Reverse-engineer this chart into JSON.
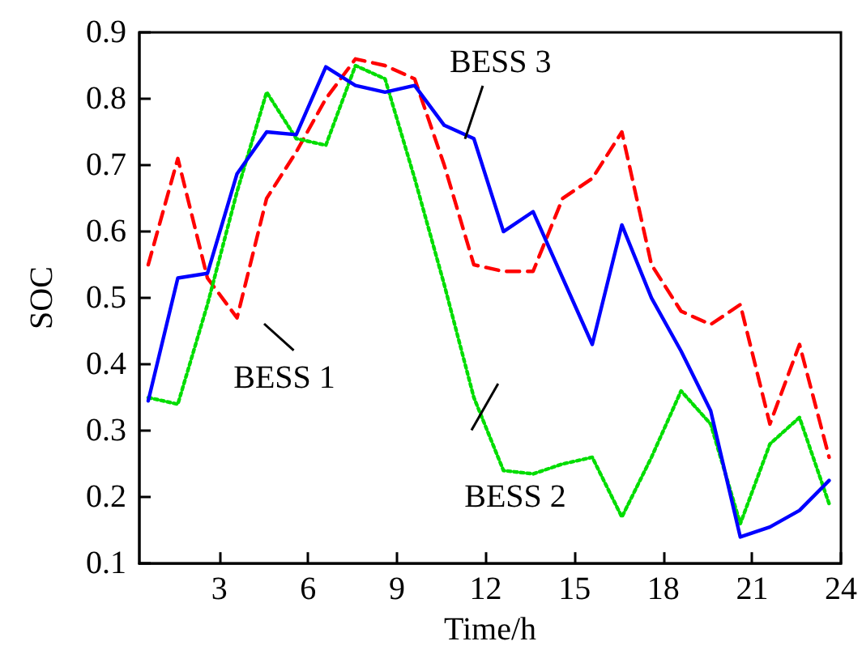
{
  "chart_data": {
    "type": "line",
    "xlabel": "Time/h",
    "ylabel": "SOC",
    "x": [
      0.6,
      1.6,
      2.6,
      3.6,
      4.6,
      5.6,
      6.6,
      7.6,
      8.6,
      9.6,
      10.6,
      11.6,
      12.6,
      13.6,
      14.6,
      15.6,
      16.6,
      17.6,
      18.6,
      19.6,
      20.6,
      21.6,
      22.6,
      23.6
    ],
    "xlim": [
      0.3,
      24
    ],
    "xticks": [
      3,
      6,
      9,
      12,
      15,
      18,
      21,
      24
    ],
    "ylim": [
      0.1,
      0.9
    ],
    "yticks": [
      0.1,
      0.2,
      0.3,
      0.4,
      0.5,
      0.6,
      0.7,
      0.8,
      0.9
    ],
    "grid": false,
    "legend": false,
    "marker": "none",
    "series": [
      {
        "name": "BESS 1",
        "color": "#ff0000",
        "line_style": "dashed",
        "values": [
          0.55,
          0.71,
          0.53,
          0.47,
          0.65,
          0.72,
          0.8,
          0.86,
          0.85,
          0.83,
          0.7,
          0.55,
          0.54,
          0.54,
          0.65,
          0.68,
          0.75,
          0.55,
          0.48,
          0.46,
          0.49,
          0.31,
          0.43,
          0.26
        ]
      },
      {
        "name": "BESS 2",
        "color": "#00dd00",
        "line_style": "dotted",
        "values": [
          0.35,
          0.34,
          0.49,
          0.66,
          0.81,
          0.74,
          0.73,
          0.85,
          0.83,
          0.68,
          0.52,
          0.35,
          0.24,
          0.235,
          0.25,
          0.26,
          0.17,
          0.26,
          0.36,
          0.31,
          0.16,
          0.28,
          0.32,
          0.19
        ]
      },
      {
        "name": "BESS 3",
        "color": "#0000ff",
        "line_style": "solid",
        "values": [
          0.345,
          0.53,
          0.537,
          0.687,
          0.75,
          0.746,
          0.848,
          0.82,
          0.81,
          0.82,
          0.76,
          0.74,
          0.6,
          0.63,
          0.53,
          0.43,
          0.61,
          0.5,
          0.42,
          0.33,
          0.14,
          0.155,
          0.18,
          0.225
        ]
      }
    ]
  }
}
